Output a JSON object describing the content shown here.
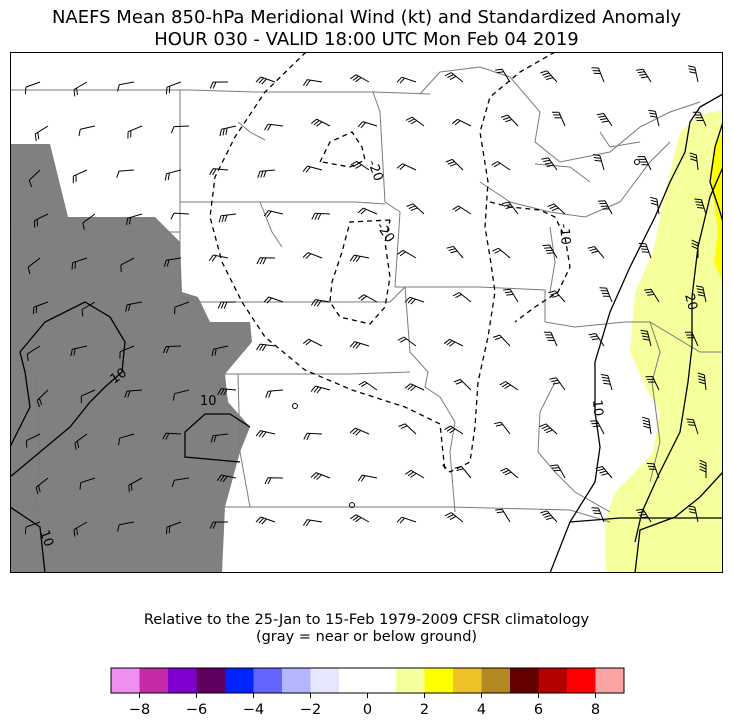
{
  "title": {
    "line1": "NAEFS Mean 850-hPa Meridional Wind (kt) and Standardized Anomaly",
    "line2": "HOUR 030 - VALID 18:00 UTC Mon Feb 04 2019"
  },
  "footnote": {
    "line1": "Relative to the 25-Jan to 15-Feb 1979-2009 CFSR climatology",
    "line2": "(gray = near or below ground)"
  },
  "map": {
    "contour_labels": [
      "-20",
      "-20",
      "-10",
      "10",
      "10",
      "10",
      "10",
      "20"
    ],
    "fill_colors": {
      "ground": "#808080",
      "anomaly_2_to_3": "#f5ff9b",
      "anomaly_3_to_4": "#ffff00",
      "land_boundary": "#7a7a7a"
    }
  },
  "colorbar": {
    "colors": [
      "#f08ff0",
      "#c72aa8",
      "#8000cf",
      "#5f0060",
      "#0024ff",
      "#6464ff",
      "#b4b4ff",
      "#e6e6ff",
      "#ffffff",
      "#ffffff",
      "#f5ff9b",
      "#ffff00",
      "#efc22a",
      "#b38820",
      "#650000",
      "#b50000",
      "#ff0000",
      "#f9a3a3"
    ],
    "tick_labels": [
      "−8",
      "−6",
      "−4",
      "−2",
      "0",
      "2",
      "4",
      "6",
      "8"
    ]
  }
}
